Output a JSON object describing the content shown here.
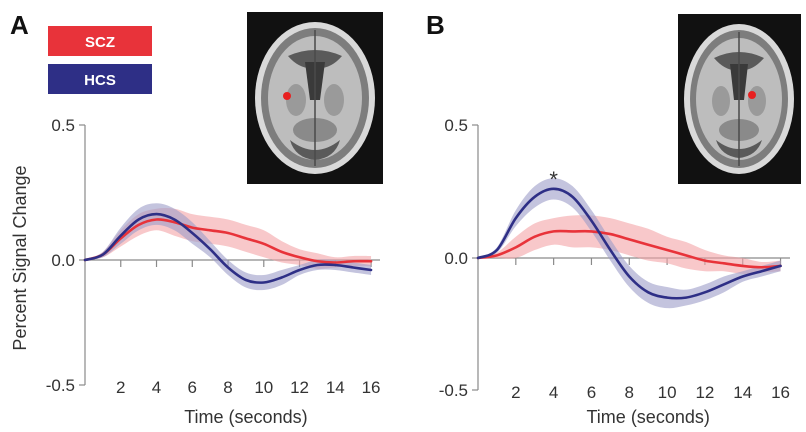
{
  "figure": {
    "ylabel": "Percent Signal Change",
    "legend": [
      {
        "label": "SCZ",
        "color": "#e8333a"
      },
      {
        "label": "HCS",
        "color": "#2e2f86"
      }
    ]
  },
  "chart_data": [
    {
      "panel": "A",
      "type": "line",
      "xlabel": "Time (seconds)",
      "ylabel": "Percent Signal Change",
      "xlim": [
        0,
        16.5
      ],
      "ylim": [
        -0.5,
        0.5
      ],
      "xticks": [
        2,
        4,
        6,
        8,
        10,
        12,
        14,
        16
      ],
      "yticks": [
        -0.5,
        0.0,
        0.5
      ],
      "ytick_labels": [
        "-0.5",
        "0.0",
        "0.5"
      ],
      "x": [
        0,
        1,
        2,
        3,
        4,
        5,
        6,
        7,
        8,
        9,
        10,
        11,
        12,
        13,
        14,
        15,
        16
      ],
      "series": [
        {
          "name": "SCZ",
          "color": "#e8333a",
          "band_color": "#f4a3a6",
          "values": [
            0,
            0.02,
            0.08,
            0.13,
            0.15,
            0.14,
            0.12,
            0.11,
            0.1,
            0.08,
            0.06,
            0.03,
            0.01,
            -0.005,
            -0.01,
            -0.005,
            -0.005
          ],
          "band": [
            0,
            0.01,
            0.03,
            0.04,
            0.04,
            0.05,
            0.05,
            0.05,
            0.05,
            0.05,
            0.05,
            0.04,
            0.03,
            0.03,
            0.02,
            0.02,
            0.02
          ]
        },
        {
          "name": "HCS",
          "color": "#2e2f86",
          "band_color": "#9c9cc8",
          "values": [
            0,
            0.02,
            0.09,
            0.15,
            0.17,
            0.15,
            0.1,
            0.04,
            -0.03,
            -0.08,
            -0.09,
            -0.07,
            -0.04,
            -0.02,
            -0.02,
            -0.03,
            -0.04
          ],
          "band": [
            0,
            0.01,
            0.03,
            0.04,
            0.04,
            0.04,
            0.04,
            0.03,
            0.03,
            0.03,
            0.03,
            0.03,
            0.02,
            0.02,
            0.02,
            0.02,
            0.02
          ]
        }
      ],
      "annotations": []
    },
    {
      "panel": "B",
      "type": "line",
      "xlabel": "Time (seconds)",
      "ylabel": "",
      "xlim": [
        0,
        16.5
      ],
      "ylim": [
        -0.5,
        0.5
      ],
      "xticks": [
        2,
        4,
        6,
        8,
        10,
        12,
        14,
        16
      ],
      "yticks": [
        -0.5,
        0.0,
        0.5
      ],
      "ytick_labels": [
        "-0.5",
        "0.0",
        "0.5"
      ],
      "x": [
        0,
        1,
        2,
        3,
        4,
        5,
        6,
        7,
        8,
        9,
        10,
        11,
        12,
        13,
        14,
        15,
        16
      ],
      "series": [
        {
          "name": "SCZ",
          "color": "#e8333a",
          "band_color": "#f4a3a6",
          "values": [
            0,
            0.01,
            0.04,
            0.08,
            0.1,
            0.1,
            0.1,
            0.09,
            0.07,
            0.05,
            0.03,
            0.01,
            -0.01,
            -0.02,
            -0.03,
            -0.035,
            -0.03
          ],
          "band": [
            0,
            0.01,
            0.04,
            0.05,
            0.05,
            0.06,
            0.06,
            0.06,
            0.06,
            0.06,
            0.05,
            0.05,
            0.04,
            0.03,
            0.03,
            0.02,
            0.02
          ]
        },
        {
          "name": "HCS",
          "color": "#2e2f86",
          "band_color": "#9c9cc8",
          "values": [
            0,
            0.03,
            0.15,
            0.23,
            0.26,
            0.23,
            0.14,
            0.03,
            -0.07,
            -0.13,
            -0.15,
            -0.15,
            -0.13,
            -0.1,
            -0.07,
            -0.05,
            -0.03
          ],
          "band": [
            0,
            0.01,
            0.03,
            0.04,
            0.04,
            0.04,
            0.04,
            0.04,
            0.04,
            0.04,
            0.04,
            0.03,
            0.03,
            0.03,
            0.02,
            0.02,
            0.02
          ]
        }
      ],
      "annotations": [
        {
          "text": "*",
          "x": 4.0,
          "y": 0.32
        }
      ]
    }
  ]
}
